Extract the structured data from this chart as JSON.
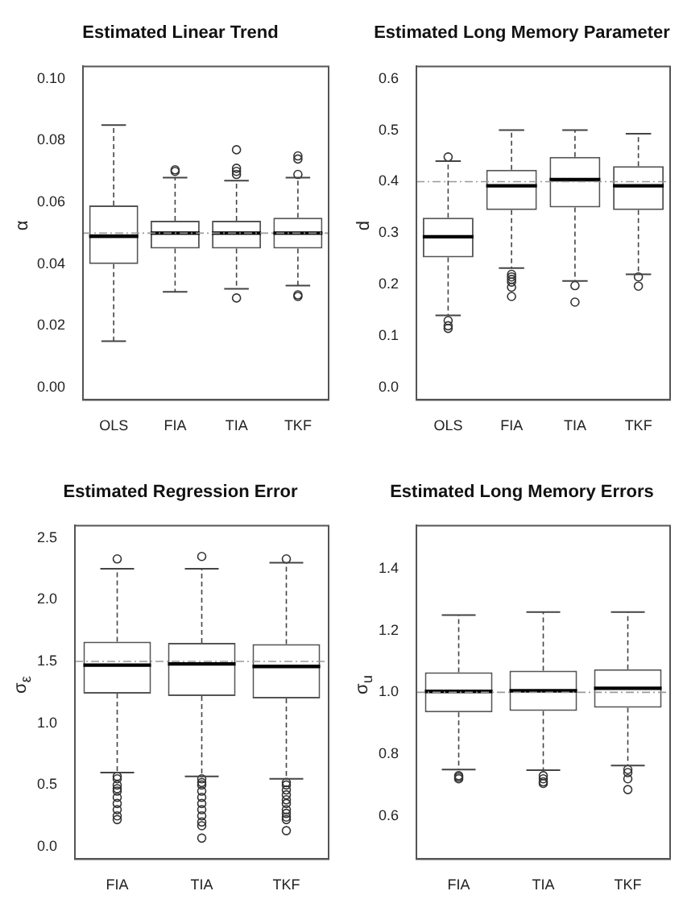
{
  "chart_data": [
    {
      "type": "box",
      "title": "Estimated Linear Trend",
      "ylabel": "α",
      "categories": [
        "OLS",
        "FIA",
        "TIA",
        "TKF"
      ],
      "boxes": [
        {
          "low": 0.015,
          "q1": 0.04,
          "median": 0.049,
          "q3": 0.059,
          "high": 0.085
        },
        {
          "low": 0.031,
          "q1": 0.045,
          "median": 0.05,
          "q3": 0.054,
          "high": 0.068,
          "outliers": [
            0.07,
            0.0705
          ]
        },
        {
          "low": 0.032,
          "q1": 0.045,
          "median": 0.05,
          "q3": 0.054,
          "high": 0.067,
          "outliers": [
            0.029,
            0.069,
            0.07,
            0.071,
            0.077
          ]
        },
        {
          "low": 0.033,
          "q1": 0.045,
          "median": 0.05,
          "q3": 0.055,
          "high": 0.068,
          "outliers": [
            0.0295,
            0.03,
            0.069,
            0.074,
            0.075
          ]
        }
      ],
      "ylim": [
        -0.004,
        0.104
      ],
      "yticks": [
        {
          "value": 0,
          "label": "0.00"
        },
        0.02,
        0.04,
        0.06,
        0.08,
        {
          "value": 0.1,
          "label": "0.10"
        }
      ],
      "ref_lines": [
        {
          "axis": "y",
          "value": 0.05,
          "color": "#999999",
          "line_style": "dashed"
        }
      ]
    },
    {
      "type": "box",
      "title": "Estimated Long Memory Parameter",
      "ylabel": "d",
      "categories": [
        "OLS",
        "FIA",
        "TIA",
        "TKF"
      ],
      "boxes": [
        {
          "low": 0.14,
          "q1": 0.253,
          "median": 0.293,
          "q3": 0.33,
          "high": 0.44,
          "outliers": [
            0.448,
            0.13,
            0.12,
            0.115
          ]
        },
        {
          "low": 0.232,
          "q1": 0.345,
          "median": 0.392,
          "q3": 0.423,
          "high": 0.5,
          "outliers": [
            0.22,
            0.215,
            0.21,
            0.205,
            0.195,
            0.177
          ]
        },
        {
          "low": 0.207,
          "q1": 0.35,
          "median": 0.404,
          "q3": 0.448,
          "high": 0.5,
          "outliers": [
            0.198,
            0.166
          ]
        },
        {
          "low": 0.22,
          "q1": 0.345,
          "median": 0.392,
          "q3": 0.43,
          "high": 0.493,
          "outliers": [
            0.215,
            0.197
          ]
        }
      ],
      "ylim": [
        -0.024,
        0.624
      ],
      "yticks": [
        {
          "value": 0,
          "label": "0.0"
        },
        0.1,
        0.2,
        0.3,
        0.4,
        0.5,
        0.6
      ],
      "ref_lines": [
        {
          "axis": "y",
          "value": 0.4,
          "color": "#999999",
          "line_style": "dashed"
        }
      ]
    },
    {
      "type": "box",
      "title": "Estimated Regression Error",
      "ylabel": "σ$_{ε}$",
      "categories": [
        "FIA",
        "TIA",
        "TKF"
      ],
      "boxes": [
        {
          "low": 0.6,
          "q1": 1.24,
          "median": 1.47,
          "q3": 1.66,
          "high": 2.25,
          "outliers": [
            2.33,
            0.57,
            0.55,
            0.5,
            0.47,
            0.45,
            0.4,
            0.35,
            0.3,
            0.25,
            0.22
          ]
        },
        {
          "low": 0.57,
          "q1": 1.22,
          "median": 1.48,
          "q3": 1.65,
          "high": 2.25,
          "outliers": [
            2.35,
            0.55,
            0.52,
            0.5,
            0.45,
            0.4,
            0.35,
            0.3,
            0.25,
            0.2,
            0.17,
            0.07
          ]
        },
        {
          "low": 0.55,
          "q1": 1.2,
          "median": 1.46,
          "q3": 1.64,
          "high": 2.3,
          "outliers": [
            2.33,
            0.52,
            0.5,
            0.46,
            0.42,
            0.38,
            0.35,
            0.3,
            0.27,
            0.24,
            0.22,
            0.13
          ]
        }
      ],
      "ylim": [
        -0.1,
        2.6
      ],
      "yticks": [
        {
          "value": 0,
          "label": "0.0"
        },
        0.5,
        {
          "value": 1,
          "label": "1.0"
        },
        1.5,
        {
          "value": 2,
          "label": "2.0"
        },
        2.5
      ],
      "ref_lines": [
        {
          "axis": "y",
          "value": 1.5,
          "color": "#999999",
          "line_style": "dashed"
        }
      ]
    },
    {
      "type": "box",
      "title": "Estimated Long Memory Errors",
      "ylabel": "σ$_{u}$",
      "categories": [
        "FIA",
        "TIA",
        "TKF"
      ],
      "boxes": [
        {
          "low": 0.75,
          "q1": 0.935,
          "median": 1.003,
          "q3": 1.065,
          "high": 1.25,
          "outliers": [
            0.73,
            0.725,
            0.72
          ]
        },
        {
          "low": 0.748,
          "q1": 0.94,
          "median": 1.005,
          "q3": 1.07,
          "high": 1.26,
          "outliers": [
            0.73,
            0.72,
            0.71,
            0.705
          ]
        },
        {
          "low": 0.763,
          "q1": 0.95,
          "median": 1.013,
          "q3": 1.075,
          "high": 1.26,
          "outliers": [
            0.75,
            0.74,
            0.72,
            0.685
          ]
        }
      ],
      "ylim": [
        0.46,
        1.54
      ],
      "yticks": [
        0.6,
        0.8,
        {
          "value": 1,
          "label": "1.0"
        },
        1.2,
        1.4
      ],
      "ref_lines": [
        {
          "axis": "y",
          "value": 1,
          "color": "#999999",
          "line_style": "dashed"
        }
      ]
    }
  ]
}
